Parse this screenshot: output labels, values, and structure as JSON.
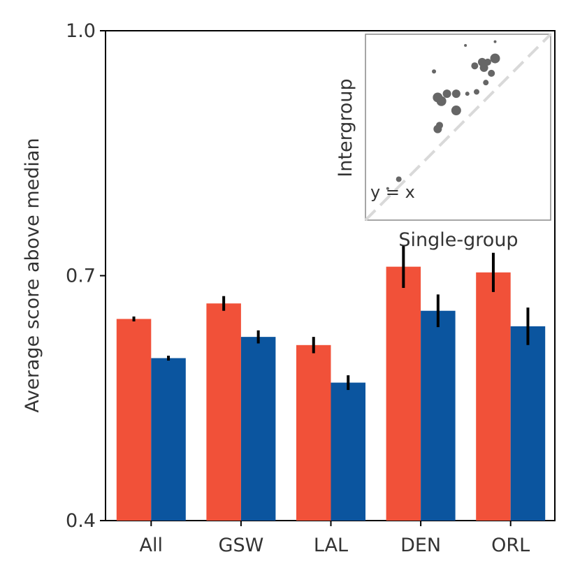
{
  "chart_data": {
    "type": "bar",
    "ylabel": "Average score above median",
    "ylim": [
      0.4,
      1.0
    ],
    "yticks": [
      "0.4",
      "0.7",
      "1.0"
    ],
    "categories": [
      "All",
      "GSW",
      "LAL",
      "DEN",
      "ORL"
    ],
    "series": [
      {
        "name": "Intergroup",
        "color": "#f15139",
        "values": [
          0.647,
          0.666,
          0.615,
          0.711,
          0.704
        ],
        "errors": [
          0.003,
          0.009,
          0.01,
          0.026,
          0.024
        ]
      },
      {
        "name": "Single-group",
        "color": "#0b559f",
        "values": [
          0.599,
          0.625,
          0.569,
          0.657,
          0.638
        ],
        "errors": [
          0.003,
          0.008,
          0.009,
          0.02,
          0.023
        ]
      }
    ],
    "inset": {
      "type": "scatter",
      "xlabel": "Single-group",
      "ylabel": "Intergroup",
      "diagonal_label": "y = x",
      "color": "#666666",
      "diagonal_color": "#d9d9d9",
      "points": [
        {
          "x": 0.12,
          "y": 0.17,
          "size": 2
        },
        {
          "x": 0.18,
          "y": 0.22,
          "size": 4
        },
        {
          "x": 0.39,
          "y": 0.49,
          "size": 6
        },
        {
          "x": 0.4,
          "y": 0.51,
          "size": 5
        },
        {
          "x": 0.39,
          "y": 0.66,
          "size": 7
        },
        {
          "x": 0.41,
          "y": 0.64,
          "size": 7
        },
        {
          "x": 0.44,
          "y": 0.68,
          "size": 6
        },
        {
          "x": 0.49,
          "y": 0.59,
          "size": 7
        },
        {
          "x": 0.49,
          "y": 0.68,
          "size": 6
        },
        {
          "x": 0.37,
          "y": 0.8,
          "size": 3
        },
        {
          "x": 0.55,
          "y": 0.68,
          "size": 3
        },
        {
          "x": 0.6,
          "y": 0.69,
          "size": 4
        },
        {
          "x": 0.59,
          "y": 0.83,
          "size": 5
        },
        {
          "x": 0.63,
          "y": 0.85,
          "size": 6
        },
        {
          "x": 0.64,
          "y": 0.82,
          "size": 6
        },
        {
          "x": 0.66,
          "y": 0.85,
          "size": 5
        },
        {
          "x": 0.65,
          "y": 0.74,
          "size": 4
        },
        {
          "x": 0.68,
          "y": 0.79,
          "size": 5
        },
        {
          "x": 0.7,
          "y": 0.87,
          "size": 7
        },
        {
          "x": 0.54,
          "y": 0.94,
          "size": 2
        },
        {
          "x": 0.7,
          "y": 0.96,
          "size": 2
        }
      ]
    }
  }
}
